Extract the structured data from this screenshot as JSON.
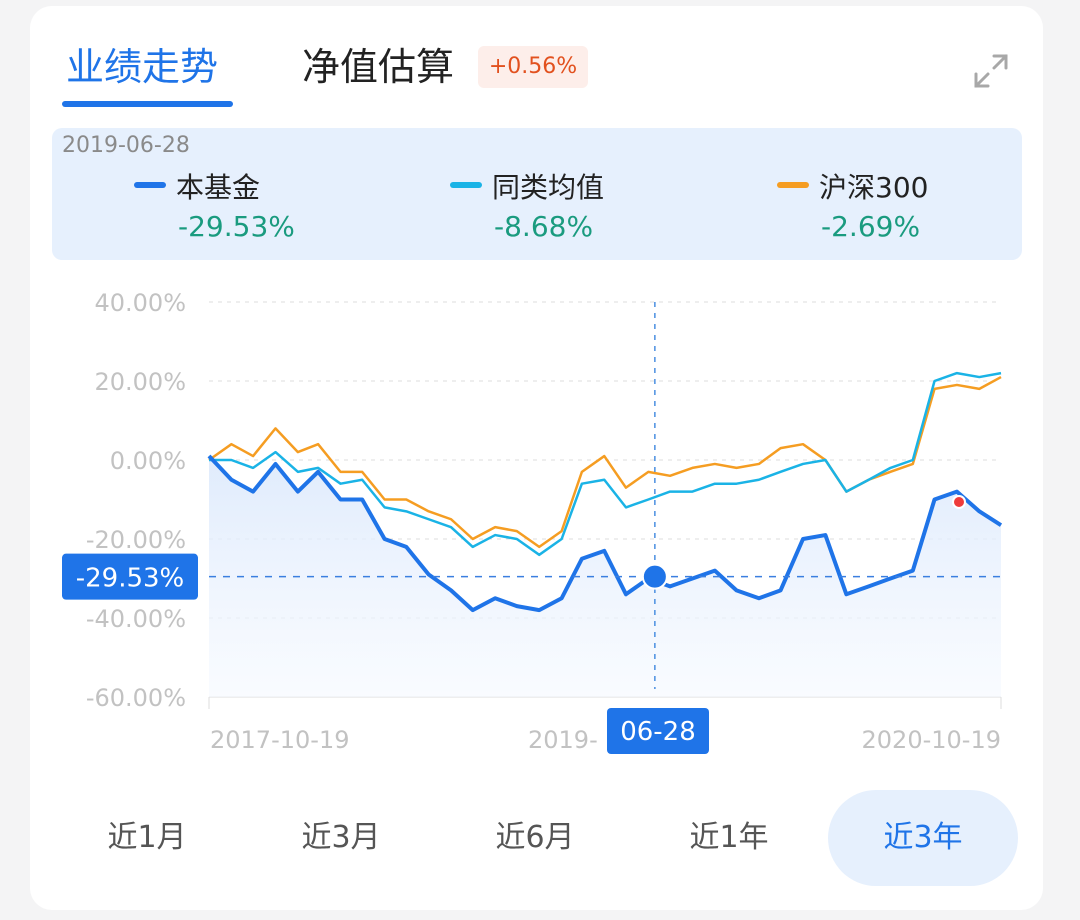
{
  "tabs": [
    {
      "label": "业绩走势",
      "active": true
    },
    {
      "label": "净值估算",
      "active": false
    }
  ],
  "estimate_badge": "+0.56%",
  "icons": {
    "expand": "expand-icon"
  },
  "legend": {
    "date": "2019-06-28",
    "items": [
      {
        "name": "本基金",
        "value": "-29.53%",
        "color": "#1f74e8"
      },
      {
        "name": "同类均值",
        "value": "-8.68%",
        "color": "#1ab3e6"
      },
      {
        "name": "沪深300",
        "value": "-2.69%",
        "color": "#f59d22"
      }
    ]
  },
  "crosshair": {
    "y_label": "-29.53%",
    "x_label": "06-28",
    "value": -29.53,
    "date": "2019-06-28"
  },
  "ranges": [
    {
      "label": "近1月",
      "active": false
    },
    {
      "label": "近3月",
      "active": false
    },
    {
      "label": "近6月",
      "active": false
    },
    {
      "label": "近1年",
      "active": false
    },
    {
      "label": "近3年",
      "active": true
    }
  ],
  "chart_data": {
    "type": "line",
    "ylim": [
      -60,
      40
    ],
    "yticks": [
      "40.00%",
      "20.00%",
      "0.00%",
      "-20.00%",
      "-40.00%",
      "-60.00%"
    ],
    "ytick_values": [
      40,
      20,
      0,
      -20,
      -40,
      -60
    ],
    "xlim": [
      "2017-10-19",
      "2020-10-19"
    ],
    "xtick_labels": [
      "2017-10-19",
      "2019-",
      "2020-10-19"
    ],
    "grid": true,
    "x": [
      "2017-10-19",
      "2017-11-19",
      "2017-12-19",
      "2018-01-19",
      "2018-02-19",
      "2018-03-19",
      "2018-04-19",
      "2018-05-19",
      "2018-06-19",
      "2018-07-19",
      "2018-08-19",
      "2018-09-19",
      "2018-10-19",
      "2018-11-19",
      "2018-12-19",
      "2019-01-19",
      "2019-02-19",
      "2019-03-19",
      "2019-04-19",
      "2019-05-19",
      "2019-06-19",
      "2019-07-19",
      "2019-08-19",
      "2019-09-19",
      "2019-10-19",
      "2019-11-19",
      "2019-12-19",
      "2020-01-19",
      "2020-02-19",
      "2020-03-19",
      "2020-04-19",
      "2020-05-19",
      "2020-06-19",
      "2020-07-19",
      "2020-08-19",
      "2020-09-19",
      "2020-10-19"
    ],
    "series": [
      {
        "name": "本基金",
        "color": "#1f74e8",
        "values": [
          1,
          -5,
          -8,
          -1,
          -8,
          -3,
          -10,
          -10,
          -20,
          -22,
          -29,
          -33,
          -38,
          -35,
          -37,
          -38,
          -35,
          -25,
          -23,
          -34,
          -30,
          -32,
          -30,
          -28,
          -33,
          -35,
          -33,
          -20,
          -19,
          -34,
          -32,
          -30,
          -28,
          -10,
          -8,
          -13,
          -16.5
        ]
      },
      {
        "name": "同类均值",
        "color": "#1ab3e6",
        "values": [
          0,
          0,
          -2,
          2,
          -3,
          -2,
          -6,
          -5,
          -12,
          -13,
          -15,
          -17,
          -22,
          -19,
          -20,
          -24,
          -20,
          -6,
          -5,
          -12,
          -10,
          -8,
          -8,
          -6,
          -6,
          -5,
          -3,
          -1,
          0,
          -8,
          -5,
          -2,
          0,
          20,
          22,
          21,
          22
        ]
      },
      {
        "name": "沪深300",
        "color": "#f59d22",
        "values": [
          0,
          4,
          1,
          8,
          2,
          4,
          -3,
          -3,
          -10,
          -10,
          -13,
          -15,
          -20,
          -17,
          -18,
          -22,
          -18,
          -3,
          1,
          -7,
          -3,
          -4,
          -2,
          -1,
          -2,
          -1,
          3,
          4,
          0,
          -8,
          -5,
          -3,
          -1,
          18,
          19,
          18,
          21
        ]
      }
    ]
  }
}
